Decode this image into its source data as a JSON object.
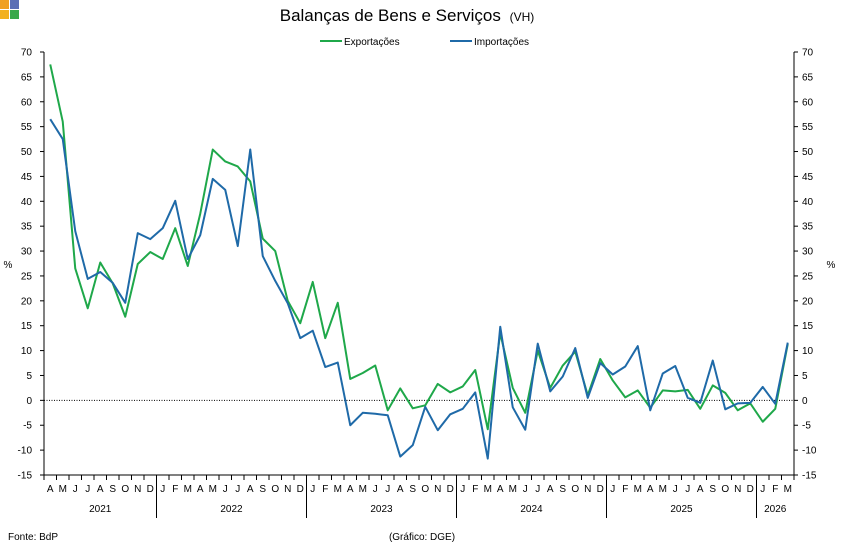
{
  "header": {
    "title": "Balanças de Bens e Serviços",
    "title_suffix": "(VH)"
  },
  "footer": {
    "source": "Fonte: BdP",
    "credit": "(Gráfico: DGE)"
  },
  "logo_colors": [
    "#f2b01e",
    "#5b6fb5",
    "#3aa84b",
    "#f0a020"
  ],
  "chart_data": {
    "type": "line",
    "ylabel_left": "%",
    "ylabel_right": "%",
    "ylim": [
      -15,
      70
    ],
    "ytick_step": 5,
    "grid": false,
    "legend_position": "top-center",
    "x": [
      "A",
      "M",
      "J",
      "J",
      "A",
      "S",
      "O",
      "N",
      "D",
      "J",
      "F",
      "M",
      "A",
      "M",
      "J",
      "J",
      "A",
      "S",
      "O",
      "N",
      "D",
      "J",
      "F",
      "M",
      "A",
      "M",
      "J",
      "J",
      "A",
      "S",
      "O",
      "N",
      "D",
      "J",
      "F",
      "M",
      "A",
      "M",
      "J",
      "J",
      "A",
      "S",
      "O",
      "N",
      "D",
      "J",
      "F",
      "M",
      "A",
      "M",
      "J",
      "J",
      "A",
      "S",
      "O",
      "N",
      "D",
      "J",
      "F",
      "M"
    ],
    "years": [
      {
        "label": "2021",
        "start": 0,
        "count": 9
      },
      {
        "label": "2022",
        "start": 9,
        "count": 12
      },
      {
        "label": "2023",
        "start": 21,
        "count": 12
      },
      {
        "label": "2024",
        "start": 33,
        "count": 12
      },
      {
        "label": "2025",
        "start": 45,
        "count": 12
      },
      {
        "label": "2026",
        "start": 57,
        "count": 3
      }
    ],
    "series": [
      {
        "name": "Exportações",
        "color": "#1fa84a",
        "values": [
          67.5,
          56,
          26.5,
          18.5,
          27.7,
          23.5,
          16.8,
          27.4,
          29.8,
          28.4,
          34.6,
          27.0,
          37.5,
          50.4,
          48.0,
          47.0,
          44.0,
          32.5,
          30.0,
          20.0,
          15.5,
          23.8,
          12.5,
          19.6,
          4.3,
          5.5,
          7.0,
          -2.0,
          2.4,
          -1.6,
          -1.0,
          3.3,
          1.6,
          2.8,
          6.1,
          -5.8,
          13.5,
          2.5,
          -2.5,
          10.0,
          2.5,
          7.0,
          9.8,
          1.0,
          8.3,
          4.0,
          0.6,
          2.0,
          -1.5,
          2.0,
          1.8,
          2.1,
          -1.7,
          3.0,
          1.5,
          -2.0,
          -0.6,
          -4.3,
          -1.7,
          11.3
        ]
      },
      {
        "name": "Importações",
        "color": "#1f6aa8",
        "values": [
          56.5,
          52.5,
          34.0,
          24.4,
          25.8,
          23.6,
          19.6,
          33.6,
          32.4,
          34.6,
          40.1,
          28.4,
          33.2,
          44.5,
          42.3,
          31.0,
          50.4,
          29.0,
          24.0,
          19.5,
          12.5,
          14.0,
          6.7,
          7.6,
          -5.0,
          -2.5,
          -2.7,
          -3.0,
          -11.3,
          -9.0,
          -1.3,
          -6.0,
          -2.8,
          -1.7,
          1.6,
          -11.7,
          14.8,
          -1.4,
          -5.9,
          11.4,
          1.8,
          4.8,
          10.5,
          0.5,
          7.5,
          5.2,
          6.8,
          10.9,
          -2.0,
          5.4,
          6.9,
          0.5,
          -0.5,
          8.0,
          -1.8,
          -0.6,
          -0.5,
          2.7,
          -0.7,
          11.6
        ]
      }
    ]
  }
}
